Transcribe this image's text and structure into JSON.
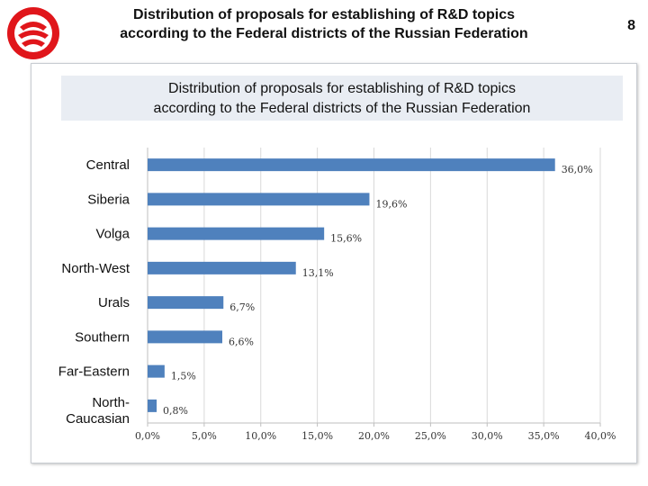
{
  "slide": {
    "title_line1": "Distribution of proposals for establishing of R&D topics",
    "title_line2": "according to the Federal districts of the Russian Federation",
    "page_number": "8"
  },
  "colors": {
    "bar": "#4f81bd",
    "logo_red": "#e0161b",
    "grid": "#d9d9d9",
    "axis": "#bfbfbf"
  },
  "chart_data": {
    "type": "bar",
    "orientation": "horizontal",
    "title_line1": "Distribution of proposals for establishing of R&D topics",
    "title_line2": "according to the Federal districts of the Russian Federation",
    "categories": [
      "Central",
      "Siberia",
      "Volga",
      "North-West",
      "Urals",
      "Southern",
      "Far-Eastern",
      "North-Caucasian"
    ],
    "values": [
      36.0,
      19.6,
      15.6,
      13.1,
      6.7,
      6.6,
      1.5,
      0.8
    ],
    "value_labels": [
      "36,0%",
      "19,6%",
      "15,6%",
      "13,1%",
      "6,7%",
      "6,6%",
      "1,5%",
      "0,8%"
    ],
    "xlim": [
      0,
      40
    ],
    "xticks": [
      0,
      5,
      10,
      15,
      20,
      25,
      30,
      35,
      40
    ],
    "xtick_labels": [
      "0,0%",
      "5,0%",
      "10,0%",
      "15,0%",
      "20,0%",
      "25,0%",
      "30,0%",
      "35,0%",
      "40,0%"
    ],
    "grid": "vertical",
    "legend": "none"
  }
}
